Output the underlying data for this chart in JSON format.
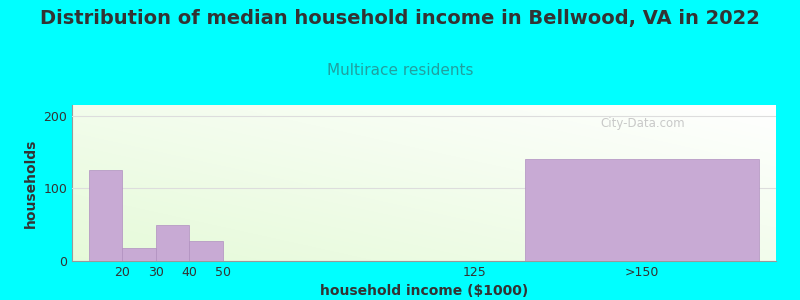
{
  "title": "Distribution of median household income in Bellwood, VA in 2022",
  "subtitle": "Multirace residents",
  "xlabel": "household income ($1000)",
  "ylabel": "households",
  "background_color": "#00FFFF",
  "bar_color": "#c8aad4",
  "bar_edge_color": "#b090c0",
  "watermark": "City-Data.com",
  "values": [
    125,
    18,
    50,
    27,
    0,
    140
  ],
  "bar_positions": [
    15,
    25,
    35,
    45,
    120,
    175
  ],
  "bar_widths": [
    10,
    10,
    10,
    10,
    10,
    70
  ],
  "ylim": [
    0,
    215
  ],
  "yticks": [
    0,
    100,
    200
  ],
  "xtick_positions": [
    20,
    30,
    40,
    50,
    125,
    175
  ],
  "xtick_labels": [
    "20",
    "30",
    "40",
    "50",
    "125",
    ">150"
  ],
  "xlim": [
    5,
    215
  ],
  "title_fontsize": 14,
  "subtitle_fontsize": 11,
  "axis_label_fontsize": 10,
  "tick_fontsize": 9,
  "grid_color": "#dddddd",
  "subtitle_color": "#20a0a0",
  "text_color": "#333333",
  "watermark_color": "#c0c0c0"
}
